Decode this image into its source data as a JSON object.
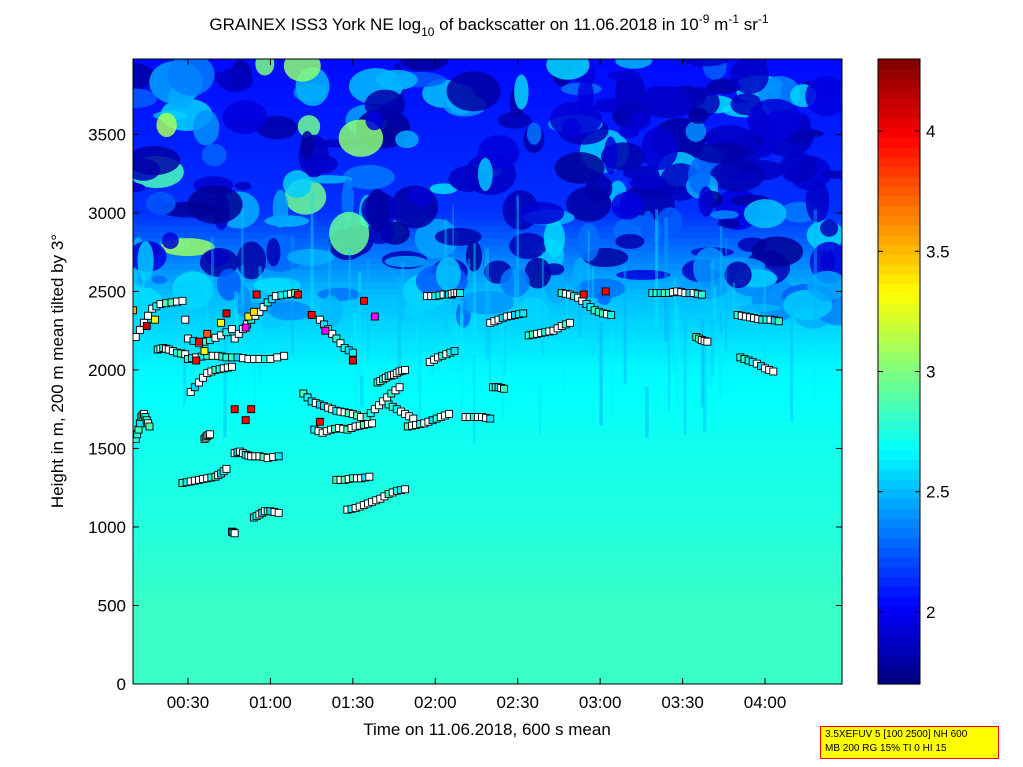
{
  "chart_data": {
    "type": "heatmap",
    "title": {
      "prefix": "GRAINEX ISS3 York NE log",
      "sub": "10",
      "middle": " of backscatter on 11.06.2018 in 10",
      "sup1": "-9",
      "unit1": " m",
      "sup2": "-1",
      "unit2": " sr",
      "sup3": "-1"
    },
    "xlabel": "Time on 11.06.2018, 600 s mean",
    "ylabel": "Height in m, 200 m mean tilted by 3°",
    "x_ticks": [
      "00:30",
      "01:00",
      "01:30",
      "02:00",
      "02:30",
      "03:00",
      "03:30",
      "04:00"
    ],
    "x_tick_minutes": [
      30,
      60,
      90,
      120,
      150,
      180,
      210,
      240
    ],
    "xlim_minutes": [
      10,
      268
    ],
    "y_ticks": [
      "0",
      "500",
      "1000",
      "1500",
      "2000",
      "2500",
      "3000",
      "3500"
    ],
    "y_tick_values": [
      0,
      500,
      1000,
      1500,
      2000,
      2500,
      3000,
      3500
    ],
    "ylim": [
      0,
      3980
    ],
    "colorbar": {
      "ticks": [
        "2",
        "2.5",
        "3",
        "3.5",
        "4"
      ],
      "tick_values": [
        2,
        2.5,
        3,
        3.5,
        4
      ],
      "range": [
        1.7,
        4.3
      ],
      "colormap": "jet"
    },
    "field_levels": [
      {
        "height": 0,
        "value": 2.82
      },
      {
        "height": 500,
        "value": 2.82
      },
      {
        "height": 1000,
        "value": 2.76
      },
      {
        "height": 1500,
        "value": 2.72
      },
      {
        "height": 2000,
        "value": 2.66
      },
      {
        "height": 2500,
        "value": 2.5
      },
      {
        "height": 3000,
        "value": 2.15
      },
      {
        "height": 3980,
        "value": 2.05
      }
    ],
    "cloud_layers": [
      {
        "t": [
          11,
          14,
          17,
          20,
          24,
          28,
          30,
          34,
          38,
          42,
          46
        ],
        "h": [
          2210,
          2300,
          2390,
          2420,
          2430,
          2440,
          2200,
          2170,
          2190,
          2220,
          2260
        ]
      },
      {
        "t": [
          19,
          21,
          23,
          26,
          29
        ],
        "h": [
          2130,
          2140,
          2130,
          2110,
          2100
        ]
      },
      {
        "t": [
          30,
          33,
          37,
          41,
          44,
          48,
          52,
          56,
          60,
          65
        ],
        "h": [
          2070,
          2080,
          2090,
          2090,
          2080,
          2080,
          2070,
          2070,
          2070,
          2090
        ]
      },
      {
        "t": [
          31,
          34,
          37,
          40,
          43,
          46
        ],
        "h": [
          1860,
          1920,
          1980,
          2000,
          2010,
          2020
        ]
      },
      {
        "t": [
          47,
          50,
          53,
          56,
          59,
          62,
          66,
          69
        ],
        "h": [
          2200,
          2260,
          2320,
          2370,
          2430,
          2470,
          2480,
          2490
        ]
      },
      {
        "t": [
          28,
          31,
          34,
          37,
          40,
          42,
          44
        ],
        "h": [
          1280,
          1290,
          1300,
          1310,
          1320,
          1340,
          1370
        ]
      },
      {
        "t": [
          47,
          49,
          51,
          53,
          56,
          59,
          63
        ],
        "h": [
          1470,
          1480,
          1460,
          1450,
          1450,
          1440,
          1450
        ]
      },
      {
        "t": [
          54,
          56,
          58,
          60,
          63
        ],
        "h": [
          1060,
          1080,
          1100,
          1100,
          1090
        ]
      },
      {
        "t": [
          46,
          47
        ],
        "h": [
          970,
          960
        ]
      },
      {
        "t": [
          11,
          12,
          13,
          14,
          15,
          16
        ],
        "h": [
          1560,
          1620,
          1700,
          1720,
          1680,
          1640
        ]
      },
      {
        "t": [
          36,
          37,
          38
        ],
        "h": [
          1560,
          1580,
          1590
        ]
      },
      {
        "t": [
          72,
          75,
          78,
          81,
          84,
          87,
          90,
          93
        ],
        "h": [
          1850,
          1800,
          1780,
          1760,
          1740,
          1730,
          1720,
          1700
        ]
      },
      {
        "t": [
          84,
          87,
          90,
          93,
          96
        ],
        "h": [
          1300,
          1300,
          1310,
          1310,
          1320
        ]
      },
      {
        "t": [
          76,
          79,
          82,
          85,
          88,
          91,
          94,
          97
        ],
        "h": [
          1620,
          1600,
          1620,
          1630,
          1620,
          1640,
          1650,
          1660
        ]
      },
      {
        "t": [
          78,
          81,
          84,
          87,
          90
        ],
        "h": [
          2320,
          2260,
          2200,
          2140,
          2110
        ]
      },
      {
        "t": [
          88,
          91,
          94,
          97,
          100,
          103,
          106,
          109
        ],
        "h": [
          1110,
          1120,
          1140,
          1160,
          1180,
          1210,
          1230,
          1240
        ]
      },
      {
        "t": [
          95,
          98,
          101,
          104,
          107
        ],
        "h": [
          1700,
          1750,
          1800,
          1850,
          1890
        ]
      },
      {
        "t": [
          99,
          101,
          103,
          105,
          107,
          109
        ],
        "h": [
          1920,
          1940,
          1960,
          1970,
          1990,
          2000
        ]
      },
      {
        "t": [
          103,
          106,
          109,
          112
        ],
        "h": [
          1780,
          1750,
          1720,
          1690
        ]
      },
      {
        "t": [
          110,
          113,
          116,
          119,
          122,
          125
        ],
        "h": [
          1640,
          1650,
          1660,
          1680,
          1700,
          1720
        ]
      },
      {
        "t": [
          118,
          121,
          124,
          127
        ],
        "h": [
          2050,
          2080,
          2100,
          2120
        ]
      },
      {
        "t": [
          117,
          120,
          123,
          126
        ],
        "h": [
          2470,
          2470,
          2480,
          2480
        ]
      },
      {
        "t": [
          131,
          134,
          137,
          140
        ],
        "h": [
          1700,
          1700,
          1700,
          1690
        ]
      },
      {
        "t": [
          140,
          143,
          146,
          149,
          152
        ],
        "h": [
          2300,
          2320,
          2340,
          2350,
          2360
        ]
      },
      {
        "t": [
          154,
          157,
          160,
          163,
          166,
          169
        ],
        "h": [
          2220,
          2230,
          2240,
          2250,
          2280,
          2300
        ]
      },
      {
        "t": [
          166,
          169,
          172,
          175,
          178,
          181,
          184
        ],
        "h": [
          2490,
          2480,
          2460,
          2420,
          2380,
          2360,
          2350
        ]
      },
      {
        "t": [
          199,
          202,
          205,
          208,
          211,
          214,
          217
        ],
        "h": [
          2490,
          2490,
          2490,
          2500,
          2490,
          2490,
          2480
        ]
      },
      {
        "t": [
          215,
          217,
          219
        ],
        "h": [
          2210,
          2190,
          2180
        ]
      },
      {
        "t": [
          230,
          233,
          236,
          239,
          242,
          245
        ],
        "h": [
          2350,
          2340,
          2330,
          2320,
          2320,
          2310
        ]
      },
      {
        "t": [
          231,
          234,
          237,
          240,
          243
        ],
        "h": [
          2080,
          2060,
          2040,
          2010,
          1990
        ]
      },
      {
        "t": [
          125,
          127,
          129
        ],
        "h": [
          2480,
          2490,
          2490
        ]
      },
      {
        "t": [
          141,
          143,
          145
        ],
        "h": [
          1890,
          1890,
          1880
        ]
      }
    ],
    "highlight_markers": [
      {
        "t": 10,
        "h": 2380,
        "c": "#ffaa00"
      },
      {
        "t": 15,
        "h": 2280,
        "c": "#cc0000"
      },
      {
        "t": 18,
        "h": 2320,
        "c": "#ffff00"
      },
      {
        "t": 34,
        "h": 2180,
        "c": "#ff0000"
      },
      {
        "t": 37,
        "h": 2230,
        "c": "#ff5500"
      },
      {
        "t": 42,
        "h": 2300,
        "c": "#ffff00"
      },
      {
        "t": 33,
        "h": 2060,
        "c": "#ff0000"
      },
      {
        "t": 36,
        "h": 2120,
        "c": "#ffff00"
      },
      {
        "t": 52,
        "h": 2340,
        "c": "#ffee00"
      },
      {
        "t": 51,
        "h": 2270,
        "c": "#ff00ff"
      },
      {
        "t": 54,
        "h": 2370,
        "c": "#ffdd00"
      },
      {
        "t": 55,
        "h": 2480,
        "c": "#ff0000"
      },
      {
        "t": 47,
        "h": 1750,
        "c": "#ff0000"
      },
      {
        "t": 51,
        "h": 1680,
        "c": "#ff0000"
      },
      {
        "t": 53,
        "h": 1750,
        "c": "#ff0000"
      },
      {
        "t": 44,
        "h": 2360,
        "c": "#cc0000"
      },
      {
        "t": 70,
        "h": 2480,
        "c": "#ff0000"
      },
      {
        "t": 75,
        "h": 2350,
        "c": "#ff0000"
      },
      {
        "t": 80,
        "h": 2250,
        "c": "#ff00ff"
      },
      {
        "t": 94,
        "h": 2440,
        "c": "#ff0000"
      },
      {
        "t": 98,
        "h": 2340,
        "c": "#ff00ff"
      },
      {
        "t": 90,
        "h": 2060,
        "c": "#ff0000"
      },
      {
        "t": 78,
        "h": 1670,
        "c": "#ff0000"
      },
      {
        "t": 174,
        "h": 2480,
        "c": "#ff0000"
      },
      {
        "t": 182,
        "h": 2500,
        "c": "#ff0000"
      }
    ],
    "info_box": {
      "line1": "3.5XEFUV 5 [100 2500] NH 600",
      "line2": "MB 200 RG 15% TI 0 HI 15"
    }
  }
}
